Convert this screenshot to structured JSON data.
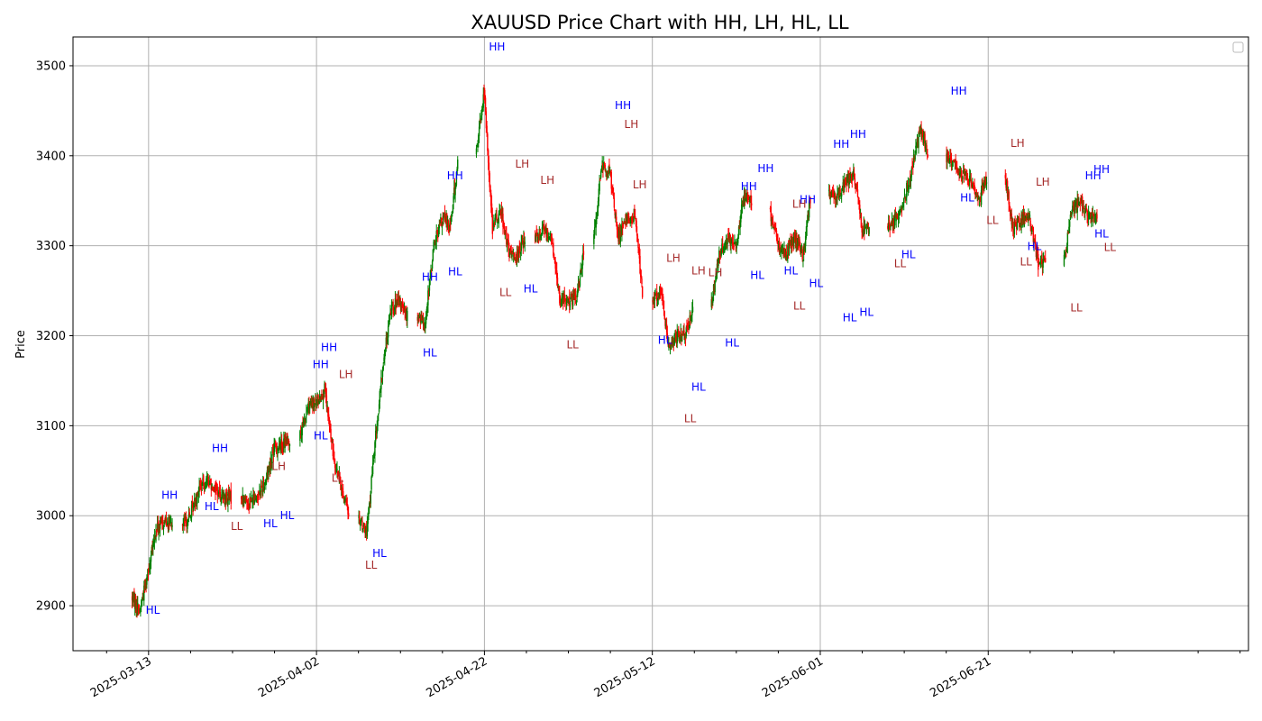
{
  "chart_data": {
    "type": "candlestick",
    "title": "XAUUSD Price Chart with HH, LH, HL, LL",
    "xlabel": "",
    "ylabel": "Price",
    "x_tick_labels": [
      "2025-03-13",
      "2025-04-02",
      "2025-04-22",
      "2025-05-12",
      "2025-06-01",
      "2025-06-21"
    ],
    "y_ticks": [
      2900,
      3000,
      3100,
      3200,
      3300,
      3400,
      3500
    ],
    "xlim": [
      "2025-03-04",
      "2025-07-22"
    ],
    "ylim": [
      2850,
      3532
    ],
    "grid": true,
    "legend": {
      "position": "upper-right",
      "entries": []
    },
    "colors": {
      "up": "#008000",
      "down": "#ff0000",
      "high_label": "#0000ff",
      "low_label": "#a52a2a",
      "grid": "#b0b0b0"
    },
    "price_path": [
      [
        "2025-03-11",
        2910
      ],
      [
        "2025-03-12",
        2895
      ],
      [
        "2025-03-13",
        2940
      ],
      [
        "2025-03-14",
        2985
      ],
      [
        "2025-03-15",
        2995
      ],
      [
        "2025-03-17",
        2988
      ],
      [
        "2025-03-18",
        3000
      ],
      [
        "2025-03-19",
        3030
      ],
      [
        "2025-03-20",
        3040
      ],
      [
        "2025-03-21",
        3030
      ],
      [
        "2025-03-22",
        3020
      ],
      [
        "2025-03-24",
        3020
      ],
      [
        "2025-03-25",
        3015
      ],
      [
        "2025-03-26",
        3022
      ],
      [
        "2025-03-27",
        3040
      ],
      [
        "2025-03-28",
        3075
      ],
      [
        "2025-03-29",
        3080
      ],
      [
        "2025-03-31",
        3085
      ],
      [
        "2025-04-01",
        3120
      ],
      [
        "2025-04-02",
        3125
      ],
      [
        "2025-04-03",
        3140
      ],
      [
        "2025-04-04",
        3070
      ],
      [
        "2025-04-05",
        3030
      ],
      [
        "2025-04-07",
        3000
      ],
      [
        "2025-04-08",
        2980
      ],
      [
        "2025-04-09",
        3080
      ],
      [
        "2025-04-10",
        3170
      ],
      [
        "2025-04-11",
        3235
      ],
      [
        "2025-04-12",
        3235
      ],
      [
        "2025-04-14",
        3220
      ],
      [
        "2025-04-15",
        3215
      ],
      [
        "2025-04-16",
        3300
      ],
      [
        "2025-04-17",
        3330
      ],
      [
        "2025-04-18",
        3325
      ],
      [
        "2025-04-21",
        3400
      ],
      [
        "2025-04-22",
        3470
      ],
      [
        "2025-04-23",
        3320
      ],
      [
        "2025-04-24",
        3340
      ],
      [
        "2025-04-25",
        3290
      ],
      [
        "2025-04-26",
        3290
      ],
      [
        "2025-04-28",
        3310
      ],
      [
        "2025-04-29",
        3320
      ],
      [
        "2025-04-30",
        3310
      ],
      [
        "2025-05-01",
        3240
      ],
      [
        "2025-05-02",
        3240
      ],
      [
        "2025-05-03",
        3240
      ],
      [
        "2025-05-05",
        3300
      ],
      [
        "2025-05-06",
        3390
      ],
      [
        "2025-05-07",
        3380
      ],
      [
        "2025-05-08",
        3310
      ],
      [
        "2025-05-09",
        3330
      ],
      [
        "2025-05-10",
        3330
      ],
      [
        "2025-05-12",
        3240
      ],
      [
        "2025-05-13",
        3250
      ],
      [
        "2025-05-14",
        3190
      ],
      [
        "2025-05-15",
        3200
      ],
      [
        "2025-05-16",
        3200
      ],
      [
        "2025-05-19",
        3230
      ],
      [
        "2025-05-20",
        3290
      ],
      [
        "2025-05-21",
        3310
      ],
      [
        "2025-05-22",
        3300
      ],
      [
        "2025-05-23",
        3360
      ],
      [
        "2025-05-26",
        3340
      ],
      [
        "2025-05-27",
        3300
      ],
      [
        "2025-05-28",
        3290
      ],
      [
        "2025-05-29",
        3310
      ],
      [
        "2025-05-30",
        3290
      ],
      [
        "2025-06-02",
        3360
      ],
      [
        "2025-06-03",
        3355
      ],
      [
        "2025-06-04",
        3370
      ],
      [
        "2025-06-05",
        3380
      ],
      [
        "2025-06-06",
        3320
      ],
      [
        "2025-06-09",
        3320
      ],
      [
        "2025-06-10",
        3330
      ],
      [
        "2025-06-11",
        3350
      ],
      [
        "2025-06-12",
        3390
      ],
      [
        "2025-06-13",
        3430
      ],
      [
        "2025-06-16",
        3400
      ],
      [
        "2025-06-17",
        3390
      ],
      [
        "2025-06-18",
        3380
      ],
      [
        "2025-06-19",
        3370
      ],
      [
        "2025-06-20",
        3350
      ],
      [
        "2025-06-23",
        3380
      ],
      [
        "2025-06-24",
        3320
      ],
      [
        "2025-06-25",
        3330
      ],
      [
        "2025-06-26",
        3330
      ],
      [
        "2025-06-27",
        3280
      ],
      [
        "2025-06-30",
        3280
      ],
      [
        "2025-07-01",
        3340
      ],
      [
        "2025-07-02",
        3350
      ],
      [
        "2025-07-03",
        3330
      ],
      [
        "2025-07-04",
        3335
      ]
    ],
    "annotations": [
      {
        "text": "HL",
        "date": "2025-03-13",
        "price": 2895
      },
      {
        "text": "HH",
        "date": "2025-03-15",
        "price": 3023
      },
      {
        "text": "HH",
        "date": "2025-03-21",
        "price": 3075
      },
      {
        "text": "HL",
        "date": "2025-03-20",
        "price": 3010
      },
      {
        "text": "LL",
        "date": "2025-03-23",
        "price": 2988
      },
      {
        "text": "LH",
        "date": "2025-03-28",
        "price": 3055
      },
      {
        "text": "HL",
        "date": "2025-03-27",
        "price": 2991
      },
      {
        "text": "HL",
        "date": "2025-03-29",
        "price": 3000
      },
      {
        "text": "HH",
        "date": "2025-04-02",
        "price": 3168
      },
      {
        "text": "HH",
        "date": "2025-04-03",
        "price": 3187
      },
      {
        "text": "HL",
        "date": "2025-04-02",
        "price": 3089
      },
      {
        "text": "LH",
        "date": "2025-04-05",
        "price": 3157
      },
      {
        "text": "LL",
        "date": "2025-04-04",
        "price": 3042
      },
      {
        "text": "LL",
        "date": "2025-04-08",
        "price": 2945
      },
      {
        "text": "HL",
        "date": "2025-04-09",
        "price": 2958
      },
      {
        "text": "HH",
        "date": "2025-04-15",
        "price": 3265
      },
      {
        "text": "HL",
        "date": "2025-04-15",
        "price": 3181
      },
      {
        "text": "HH",
        "date": "2025-04-18",
        "price": 3378
      },
      {
        "text": "HL",
        "date": "2025-04-18",
        "price": 3271
      },
      {
        "text": "HH",
        "date": "2025-04-23",
        "price": 3521
      },
      {
        "text": "LH",
        "date": "2025-04-26",
        "price": 3391
      },
      {
        "text": "LL",
        "date": "2025-04-24",
        "price": 3248
      },
      {
        "text": "HL",
        "date": "2025-04-27",
        "price": 3252
      },
      {
        "text": "LH",
        "date": "2025-04-29",
        "price": 3373
      },
      {
        "text": "LL",
        "date": "2025-05-02",
        "price": 3190
      },
      {
        "text": "HH",
        "date": "2025-05-08",
        "price": 3456
      },
      {
        "text": "LH",
        "date": "2025-05-09",
        "price": 3435
      },
      {
        "text": "LH",
        "date": "2025-05-10",
        "price": 3368
      },
      {
        "text": "LH",
        "date": "2025-05-14",
        "price": 3286
      },
      {
        "text": "HL",
        "date": "2025-05-13",
        "price": 3195
      },
      {
        "text": "LH",
        "date": "2025-05-17",
        "price": 3272
      },
      {
        "text": "LL",
        "date": "2025-05-16",
        "price": 3108
      },
      {
        "text": "HL",
        "date": "2025-05-17",
        "price": 3143
      },
      {
        "text": "LH",
        "date": "2025-05-19",
        "price": 3270
      },
      {
        "text": "HL",
        "date": "2025-05-21",
        "price": 3192
      },
      {
        "text": "HH",
        "date": "2025-05-23",
        "price": 3366
      },
      {
        "text": "HH",
        "date": "2025-05-25",
        "price": 3386
      },
      {
        "text": "HL",
        "date": "2025-05-24",
        "price": 3267
      },
      {
        "text": "LH",
        "date": "2025-05-29",
        "price": 3346
      },
      {
        "text": "HH",
        "date": "2025-05-30",
        "price": 3351
      },
      {
        "text": "HL",
        "date": "2025-05-28",
        "price": 3272
      },
      {
        "text": "LL",
        "date": "2025-05-29",
        "price": 3233
      },
      {
        "text": "HL",
        "date": "2025-05-31",
        "price": 3258
      },
      {
        "text": "HH",
        "date": "2025-06-03",
        "price": 3413
      },
      {
        "text": "HH",
        "date": "2025-06-05",
        "price": 3424
      },
      {
        "text": "HL",
        "date": "2025-06-04",
        "price": 3220
      },
      {
        "text": "HL",
        "date": "2025-06-06",
        "price": 3226
      },
      {
        "text": "LL",
        "date": "2025-06-10",
        "price": 3280
      },
      {
        "text": "HL",
        "date": "2025-06-11",
        "price": 3290
      },
      {
        "text": "HH",
        "date": "2025-06-17",
        "price": 3472
      },
      {
        "text": "HL",
        "date": "2025-06-18",
        "price": 3353
      },
      {
        "text": "LL",
        "date": "2025-06-21",
        "price": 3328
      },
      {
        "text": "LH",
        "date": "2025-06-24",
        "price": 3414
      },
      {
        "text": "LL",
        "date": "2025-06-25",
        "price": 3282
      },
      {
        "text": "HL",
        "date": "2025-06-26",
        "price": 3299
      },
      {
        "text": "LH",
        "date": "2025-06-27",
        "price": 3371
      },
      {
        "text": "LL",
        "date": "2025-07-01",
        "price": 3231
      },
      {
        "text": "HH",
        "date": "2025-07-03",
        "price": 3378
      },
      {
        "text": "HH",
        "date": "2025-07-04",
        "price": 3385
      },
      {
        "text": "HL",
        "date": "2025-07-04",
        "price": 3313
      },
      {
        "text": "LL",
        "date": "2025-07-05",
        "price": 3298
      }
    ]
  }
}
